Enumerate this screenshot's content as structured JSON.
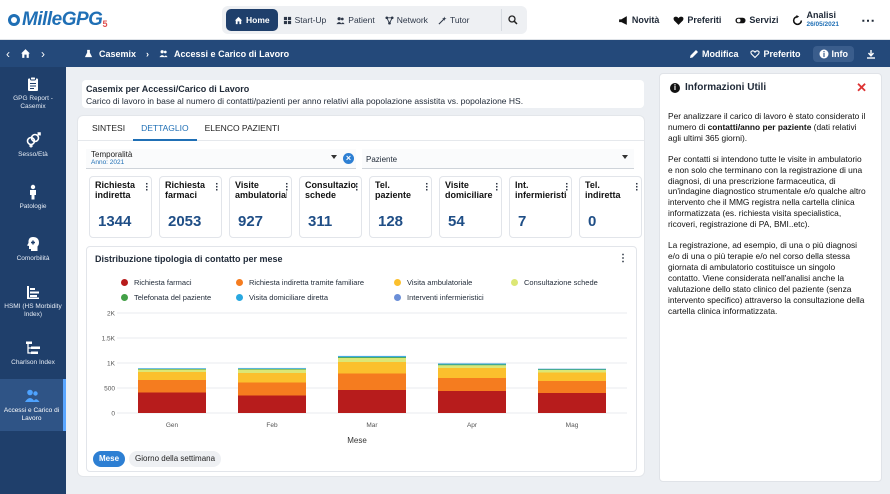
{
  "app": {
    "logo": "MilleGPG",
    "logo_suffix": "5"
  },
  "topnav": {
    "items": [
      {
        "label": "Home",
        "icon": "home-icon",
        "active": true
      },
      {
        "label": "Start-Up",
        "icon": "grid-icon"
      },
      {
        "label": "Patient",
        "icon": "users-icon"
      },
      {
        "label": "Network",
        "icon": "network-icon"
      },
      {
        "label": "Tutor",
        "icon": "wand-icon"
      }
    ]
  },
  "topright": {
    "novita": "Novità",
    "preferiti": "Preferiti",
    "servizi": "Servizi",
    "analisi": "Analisi",
    "analisi_date": "26/05/2021"
  },
  "breadcrumb": {
    "root": "Casemix",
    "current": "Accessi e Carico di Lavoro"
  },
  "subbar_actions": {
    "modifica": "Modifica",
    "preferito": "Preferito",
    "info": "Info"
  },
  "sidebar": {
    "items": [
      {
        "label": "GPG Report - Casemix",
        "icon": "clipboard-icon"
      },
      {
        "label": "Sesso/Età",
        "icon": "gender-icon"
      },
      {
        "label": "Patologie",
        "icon": "person-icon"
      },
      {
        "label": "Comorbilità",
        "icon": "head-icon"
      },
      {
        "label": "HSMI (HS Morbidity Index)",
        "icon": "bars-icon"
      },
      {
        "label": "Charlson Index",
        "icon": "hierarchy-icon"
      },
      {
        "label": "Accessi e Carico di Lavoro",
        "icon": "users-icon",
        "active": true
      }
    ]
  },
  "page": {
    "title": "Casemix per Accessi/Carico di Lavoro",
    "subtitle": "Carico di lavoro in base al numero di contatti/pazienti per anno relativi alla popolazione assistita vs. popolazione HS."
  },
  "tabs": [
    {
      "label": "SINTESI"
    },
    {
      "label": "DETTAGLIO",
      "active": true
    },
    {
      "label": "ELENCO PAZIENTI"
    }
  ],
  "filters": {
    "temporalita_label": "Temporalità",
    "temporalita_value": "Anno: 2021",
    "paziente_label": "Paziente"
  },
  "kpis": [
    {
      "label": "Richiesta indiretta",
      "value": "1344"
    },
    {
      "label": "Richiesta farmaci",
      "value": "2053"
    },
    {
      "label": "Visite ambulatoriali",
      "value": "927"
    },
    {
      "label": "Consultazione schede",
      "value": "311"
    },
    {
      "label": "Tel. paziente",
      "value": "128"
    },
    {
      "label": "Visite domiciliare",
      "value": "54"
    },
    {
      "label": "Int. infermieristici",
      "value": "7"
    },
    {
      "label": "Tel. indiretta",
      "value": "0"
    }
  ],
  "chart_data": {
    "type": "bar",
    "stacked": true,
    "title": "Distribuzione tipologia di contatto per mese",
    "xlabel": "Mese",
    "ylabel": "",
    "categories": [
      "Gen",
      "Feb",
      "Mar",
      "Apr",
      "Mag"
    ],
    "yticks": [
      "0",
      "500",
      "1K",
      "1.5K",
      "2K"
    ],
    "ylim": [
      0,
      2000
    ],
    "grid": true,
    "legend_position": "top",
    "series": [
      {
        "name": "Richiesta farmaci",
        "color": "#b71c1c",
        "values": [
          410,
          350,
          460,
          440,
          400
        ]
      },
      {
        "name": "Richiesta indiretta tramite familiare",
        "color": "#f57c1f",
        "values": [
          250,
          260,
          330,
          260,
          240
        ]
      },
      {
        "name": "Visita ambulatoriale",
        "color": "#fbc02d",
        "values": [
          160,
          190,
          230,
          200,
          170
        ]
      },
      {
        "name": "Consultazione schede",
        "color": "#dce775",
        "values": [
          50,
          70,
          80,
          55,
          50
        ]
      },
      {
        "name": "Telefonata del paziente",
        "color": "#43a047",
        "values": [
          12,
          14,
          18,
          16,
          12
        ]
      },
      {
        "name": "Visita domiciliare diretta",
        "color": "#29a8e0",
        "values": [
          12,
          14,
          20,
          18,
          12
        ]
      },
      {
        "name": "Interventi infermieristici",
        "color": "#6b8fd8",
        "values": [
          3,
          3,
          4,
          3,
          3
        ]
      }
    ]
  },
  "toggles": [
    {
      "label": "Mese",
      "active": true
    },
    {
      "label": "Giorno della settimana"
    }
  ],
  "info": {
    "title": "Informazioni Utili",
    "p1_a": "Per analizzare il carico di lavoro è stato considerato il numero di ",
    "p1_b": "contatti/anno per paziente",
    "p1_c": " (dati relativi agli ultimi 365 giorni).",
    "p2": "Per contatti si intendono tutte le visite in ambulatorio e non solo che terminano con la registrazione di una diagnosi, di una prescrizione farmaceutica, di un'indagine diagnostico strumentale e/o qualche altro intervento che il MMG registra nella cartella clinica informatizzata (es. richiesta visita specialistica, ricoveri, registrazione di PA, BMI..etc).",
    "p3": "La registrazione, ad esempio, di una o più diagnosi e/o di una o più terapie e/o nel corso della stessa giornata di ambulatorio costituisce un singolo contatto. Viene considerata nell'analisi anche la valutazione dello stato clinico del paziente (senza intervento specifico) attraverso la consultazione della cartella clinica informatizzata."
  }
}
